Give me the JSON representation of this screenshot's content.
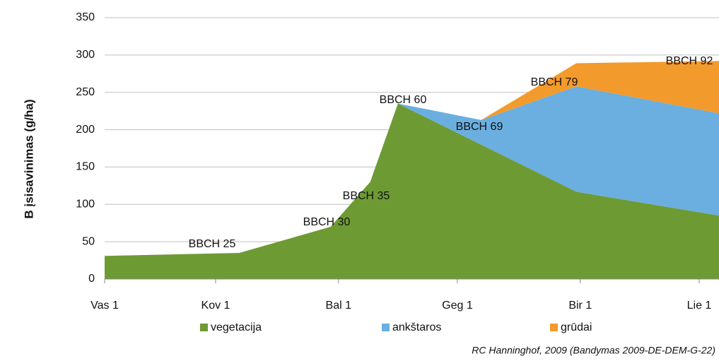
{
  "chart_data": {
    "type": "area",
    "y_label": "B įsisavinimas (g/ha)",
    "x": [
      0,
      34,
      57,
      67,
      74,
      95,
      119,
      155
    ],
    "xlim": [
      0,
      155
    ],
    "xticks": [
      {
        "value": 0,
        "label": "Vas 1"
      },
      {
        "value": 28,
        "label": "Kov 1"
      },
      {
        "value": 59,
        "label": "Bal 1"
      },
      {
        "value": 89,
        "label": "Geg 1"
      },
      {
        "value": 120,
        "label": "Bir 1"
      },
      {
        "value": 150,
        "label": "Lie 1"
      }
    ],
    "ylim": [
      0,
      350
    ],
    "yticks": [
      0,
      50,
      100,
      150,
      200,
      250,
      300,
      350
    ],
    "grid": true,
    "stacked": true,
    "legend": "bottom",
    "series": [
      {
        "name": "vegetacija",
        "color": "#6e9a34",
        "values": [
          31,
          35,
          70,
          130,
          235,
          180,
          117,
          85
        ]
      },
      {
        "name": "ankštaros",
        "color": "#6aafe0",
        "values": [
          0,
          0,
          0,
          0,
          0,
          33,
          141,
          137
        ]
      },
      {
        "name": "grūdai",
        "color": "#f39a2c",
        "values": [
          0,
          0,
          0,
          0,
          0,
          0,
          31,
          70
        ]
      }
    ],
    "annotations": [
      "BBCH 25",
      "BBCH 30",
      "BBCH 35",
      "BBCH 60",
      "BBCH 69",
      "BBCH 79",
      "BBCH 92"
    ],
    "source": "RC Hanninghof, 2009 (Bandymas 2009-DE-DEM-G-22)"
  }
}
